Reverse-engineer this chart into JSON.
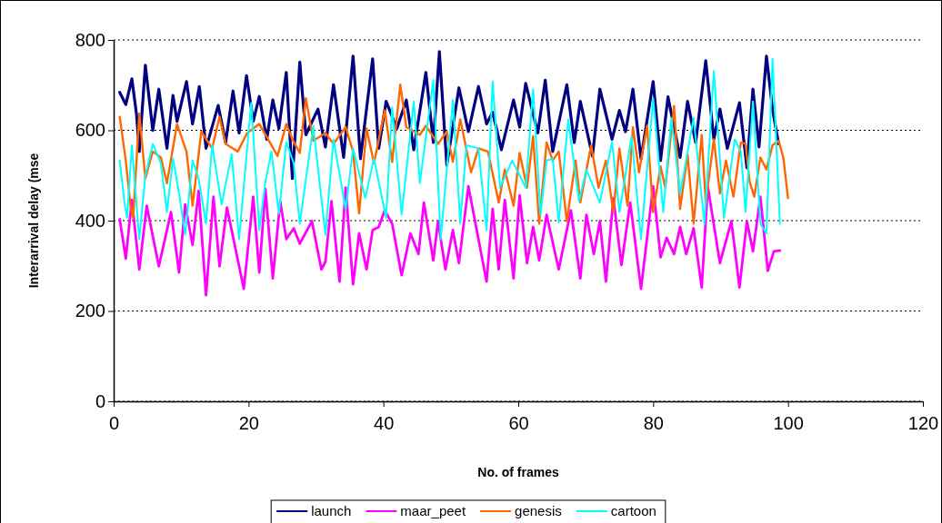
{
  "chart_data": {
    "type": "line",
    "xlabel": "No. of frames",
    "ylabel": "Interarrival delay (mse",
    "xlim": [
      0,
      120
    ],
    "xticks": [
      0,
      20,
      40,
      60,
      80,
      100,
      120
    ],
    "ylim": [
      0,
      800
    ],
    "yticks": [
      0,
      200,
      400,
      600,
      800
    ],
    "grid": "y",
    "legend": "bottom",
    "marker": "none",
    "line_style": "solid",
    "series": [
      {
        "name": "launch",
        "color": "#000080",
        "x": [
          0.9,
          1.8,
          2.7,
          3.4,
          3.8,
          4.7,
          5.8,
          6.7,
          7.9,
          8.8,
          9.4,
          10.8,
          11.7,
          12.7,
          13.7,
          15.5,
          16.6,
          17.7,
          18.6,
          19.7,
          20.7,
          21.6,
          22.7,
          23.6,
          24.5,
          25.6,
          26.5,
          27.6,
          28.5,
          30.3,
          31.4,
          32.6,
          34.1,
          35.5,
          36.6,
          38.4,
          39.3,
          40.4,
          42.0,
          43.4,
          44.5,
          46.3,
          47.4,
          48.3,
          49.4,
          51.2,
          52.6,
          54.1,
          55.3,
          56.2,
          57.5,
          59.3,
          60.2,
          61.1,
          62.9,
          64.0,
          65.1,
          67.2,
          68.3,
          69.2,
          71.0,
          72.1,
          73.9,
          75.0,
          75.9,
          77.0,
          78.2,
          80.0,
          81.1,
          82.2,
          84.0,
          85.1,
          86.3,
          87.8,
          89.0,
          89.9,
          91.0,
          92.8,
          93.9,
          94.8,
          95.7,
          96.8,
          97.7,
          98.6
        ],
        "values": [
          684,
          657,
          714,
          634,
          553,
          744,
          600,
          691,
          560,
          677,
          620,
          708,
          614,
          697,
          560,
          655,
          573,
          687,
          594,
          721,
          620,
          675,
          580,
          667,
          604,
          728,
          493,
          751,
          590,
          647,
          563,
          701,
          540,
          764,
          537,
          758,
          560,
          664,
          604,
          667,
          557,
          728,
          573,
          774,
          523,
          694,
          597,
          697,
          614,
          640,
          557,
          667,
          607,
          704,
          594,
          711,
          553,
          701,
          573,
          664,
          543,
          691,
          580,
          644,
          597,
          691,
          537,
          708,
          533,
          674,
          540,
          664,
          573,
          754,
          580,
          647,
          560,
          661,
          517,
          691,
          563,
          764,
          647,
          570
        ]
      },
      {
        "name": "maar_peet",
        "color": "#ff00ff",
        "x": [
          0.9,
          1.8,
          2.7,
          3.8,
          4.9,
          6.7,
          8.5,
          9.7,
          10.6,
          11.7,
          12.6,
          13.7,
          14.8,
          15.7,
          16.8,
          19.3,
          20.7,
          21.6,
          22.5,
          23.6,
          24.7,
          25.6,
          26.7,
          27.6,
          29.4,
          30.8,
          31.4,
          32.3,
          33.5,
          34.4,
          35.5,
          36.4,
          37.5,
          38.4,
          39.3,
          40.2,
          41.3,
          42.7,
          44.0,
          45.2,
          46.0,
          47.4,
          48.1,
          49.2,
          50.3,
          51.2,
          52.6,
          55.3,
          56.2,
          57.1,
          58.0,
          59.3,
          60.2,
          61.3,
          62.2,
          63.1,
          64.2,
          66.0,
          67.8,
          69.2,
          70.1,
          71.2,
          72.1,
          73.0,
          74.1,
          75.3,
          76.6,
          78.2,
          80.0,
          81.1,
          82.0,
          83.1,
          84.0,
          84.9,
          86.0,
          87.2,
          88.1,
          89.9,
          91.6,
          92.8,
          93.9,
          94.8,
          95.9,
          97.0,
          97.9,
          98.8
        ],
        "values": [
          403,
          316,
          446,
          292,
          433,
          299,
          419,
          285,
          436,
          346,
          466,
          235,
          453,
          299,
          429,
          249,
          453,
          285,
          470,
          272,
          443,
          359,
          383,
          349,
          399,
          292,
          309,
          443,
          265,
          473,
          259,
          372,
          292,
          379,
          386,
          423,
          393,
          279,
          372,
          326,
          440,
          312,
          399,
          292,
          379,
          306,
          476,
          265,
          426,
          292,
          446,
          272,
          456,
          306,
          386,
          312,
          413,
          292,
          423,
          272,
          413,
          326,
          399,
          265,
          450,
          302,
          440,
          249,
          476,
          319,
          362,
          326,
          386,
          326,
          383,
          252,
          476,
          306,
          399,
          252,
          399,
          332,
          453,
          289,
          332,
          334
        ]
      },
      {
        "name": "genesis",
        "color": "#ff6600",
        "x": [
          0.9,
          1.8,
          2.5,
          2.9,
          3.8,
          4.7,
          5.8,
          7.0,
          7.9,
          9.4,
          10.8,
          11.7,
          13.0,
          14.6,
          15.7,
          16.6,
          18.4,
          19.8,
          21.6,
          22.9,
          24.3,
          25.6,
          26.5,
          27.6,
          28.5,
          29.6,
          31.0,
          31.4,
          32.6,
          34.4,
          35.5,
          36.4,
          37.5,
          38.6,
          40.2,
          41.3,
          42.5,
          43.4,
          45.4,
          46.3,
          48.1,
          49.4,
          50.3,
          51.4,
          53.0,
          54.1,
          55.5,
          57.1,
          58.0,
          59.3,
          60.2,
          61.3,
          62.2,
          63.1,
          64.2,
          65.1,
          66.0,
          67.2,
          68.5,
          69.2,
          70.8,
          71.9,
          73.0,
          74.1,
          75.0,
          76.2,
          77.0,
          77.9,
          79.1,
          80.0,
          81.1,
          81.8,
          83.1,
          84.0,
          85.1,
          86.0,
          87.2,
          87.8,
          89.0,
          89.9,
          90.8,
          91.9,
          93.0,
          93.7,
          94.3,
          95.0,
          95.9,
          96.8,
          97.7,
          98.6,
          99.3,
          100.0
        ],
        "values": [
          630,
          533,
          433,
          406,
          637,
          493,
          553,
          540,
          483,
          614,
          553,
          433,
          597,
          560,
          630,
          570,
          553,
          594,
          614,
          580,
          543,
          614,
          580,
          550,
          671,
          577,
          590,
          594,
          570,
          607,
          553,
          416,
          604,
          527,
          644,
          530,
          701,
          607,
          590,
          610,
          570,
          597,
          530,
          624,
          507,
          560,
          553,
          440,
          513,
          433,
          550,
          473,
          587,
          393,
          573,
          533,
          553,
          399,
          533,
          440,
          567,
          473,
          533,
          419,
          560,
          433,
          607,
          507,
          610,
          419,
          520,
          473,
          654,
          426,
          547,
          393,
          590,
          440,
          580,
          460,
          533,
          453,
          573,
          570,
          486,
          453,
          540,
          513,
          567,
          577,
          540,
          450
        ]
      },
      {
        "name": "cartoon",
        "color": "#00ffff",
        "x": [
          0.9,
          1.6,
          2.0,
          2.7,
          3.8,
          4.7,
          5.8,
          7.0,
          7.9,
          8.8,
          9.7,
          10.6,
          11.7,
          12.6,
          13.7,
          14.6,
          16.0,
          17.5,
          18.6,
          20.4,
          21.6,
          22.5,
          23.4,
          24.5,
          25.6,
          26.7,
          27.6,
          29.6,
          31.4,
          32.6,
          34.4,
          35.5,
          37.3,
          38.6,
          40.4,
          41.3,
          42.7,
          44.5,
          45.4,
          47.4,
          48.5,
          50.3,
          51.4,
          52.3,
          54.1,
          55.3,
          56.2,
          57.3,
          59.1,
          61.1,
          62.2,
          63.3,
          64.2,
          65.1,
          66.0,
          67.4,
          69.0,
          70.1,
          72.1,
          73.9,
          75.0,
          76.8,
          78.2,
          80.0,
          81.5,
          82.7,
          84.0,
          86.0,
          87.6,
          89.0,
          90.5,
          92.1,
          93.0,
          93.7,
          94.8,
          95.9,
          96.8,
          97.7,
          98.8
        ],
        "values": [
          533,
          440,
          406,
          567,
          359,
          500,
          570,
          527,
          419,
          537,
          460,
          369,
          533,
          493,
          393,
          567,
          436,
          547,
          359,
          661,
          379,
          486,
          553,
          416,
          574,
          527,
          393,
          610,
          369,
          580,
          426,
          560,
          450,
          537,
          406,
          651,
          413,
          664,
          483,
          711,
          359,
          667,
          393,
          567,
          560,
          379,
          708,
          473,
          533,
          473,
          691,
          413,
          533,
          537,
          396,
          624,
          443,
          513,
          440,
          574,
          419,
          587,
          359,
          671,
          419,
          627,
          460,
          627,
          393,
          731,
          406,
          580,
          553,
          419,
          664,
          393,
          372,
          758,
          393
        ]
      }
    ]
  }
}
